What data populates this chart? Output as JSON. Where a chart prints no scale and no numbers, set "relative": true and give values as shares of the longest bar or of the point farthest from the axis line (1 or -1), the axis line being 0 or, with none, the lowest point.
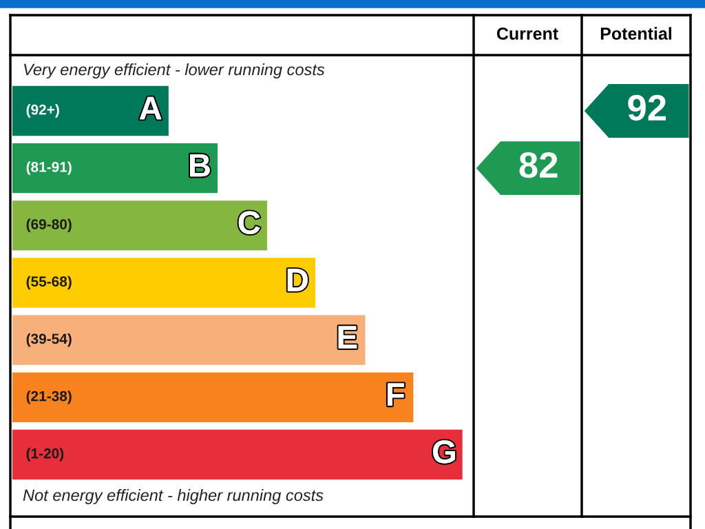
{
  "chart_data": {
    "type": "bar",
    "orientation": "horizontal",
    "relative": true,
    "tick_labels": false,
    "grid": false,
    "legend": false,
    "data_labels": false,
    "categories": [
      "A",
      "B",
      "C",
      "D",
      "E",
      "F",
      "G"
    ],
    "values": [
      0.347,
      0.456,
      0.566,
      0.673,
      0.784,
      0.891,
      1
    ],
    "colors": [
      "#00785a",
      "#1f9a52",
      "#85b63f",
      "#ffcc00",
      "#f7b07a",
      "#f7821e",
      "#e62f3a"
    ],
    "annotations": [
      {
        "text": "Very energy efficient - lower running costs"
      },
      {
        "text": "Not energy efficient - higher running costs"
      },
      {
        "text": "Current"
      },
      {
        "text": "Potential"
      },
      "82",
      "92",
      "(92+)",
      "(81-91)",
      "(69-80)",
      "(55-68)",
      "(39-54)",
      "(21-38)",
      "(1-20)"
    ]
  }
}
